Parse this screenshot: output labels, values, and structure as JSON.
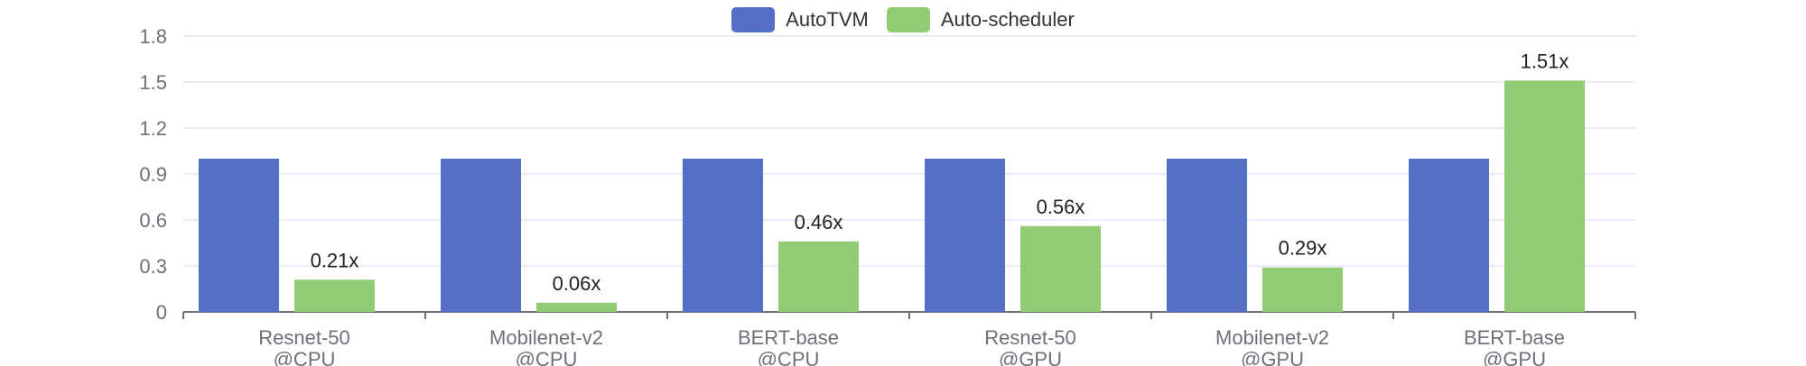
{
  "chart_data": {
    "type": "bar",
    "categories": [
      [
        "Resnet-50",
        "@CPU"
      ],
      [
        "Mobilenet-v2",
        "@CPU"
      ],
      [
        "BERT-base",
        "@CPU"
      ],
      [
        "Resnet-50",
        "@GPU"
      ],
      [
        "Mobilenet-v2",
        "@GPU"
      ],
      [
        "BERT-base",
        "@GPU"
      ]
    ],
    "series": [
      {
        "name": "AutoTVM",
        "color": "#5470c6",
        "values": [
          1,
          1,
          1,
          1,
          1,
          1
        ],
        "labels": [
          "",
          "",
          "",
          "",
          "",
          ""
        ]
      },
      {
        "name": "Auto-scheduler",
        "color": "#91cc75",
        "values": [
          0.21,
          0.06,
          0.46,
          0.56,
          0.29,
          1.51
        ],
        "labels": [
          "0.21x",
          "0.06x",
          "0.46x",
          "0.56x",
          "0.29x",
          "1.51x"
        ]
      }
    ],
    "ylim": [
      0,
      1.8
    ],
    "yticks": [
      "0",
      "0.3",
      "0.6",
      "0.9",
      "1.2",
      "1.5",
      "1.8"
    ],
    "grid": true,
    "legend_position": "top-center"
  }
}
